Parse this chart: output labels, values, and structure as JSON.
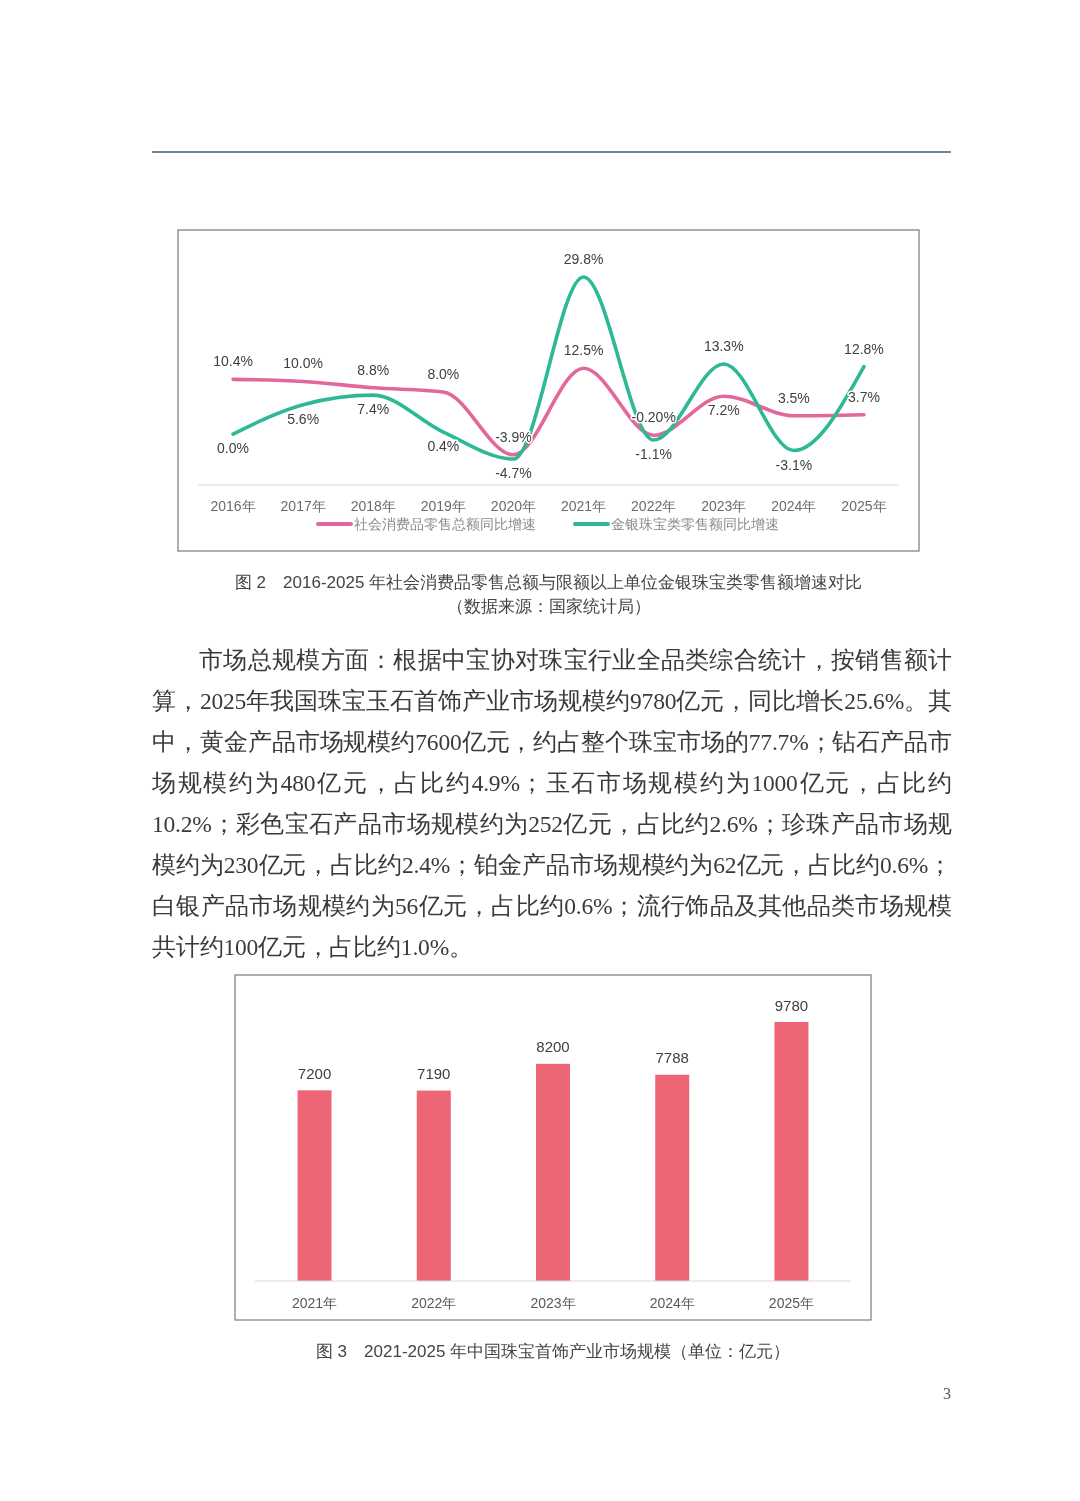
{
  "chart_data": [
    {
      "type": "line",
      "title": "图 2　2016-2025 年社会消费品零售总额与限额以上单位金银珠宝类零售额增速对比",
      "annotations": [
        "（数据来源：国家统计局）"
      ],
      "categories": [
        "2016年",
        "2017年",
        "2018年",
        "2019年",
        "2020年",
        "2021年",
        "2022年",
        "2023年",
        "2024年",
        "2025年"
      ],
      "series": [
        {
          "name": "社会消费品零售总额同比增速",
          "color": "#e2679a",
          "values": [
            10.4,
            10.0,
            8.8,
            8.0,
            -3.9,
            12.5,
            -0.2,
            7.2,
            3.5,
            3.7
          ],
          "value_labels": [
            "10.4%",
            "10.0%",
            "8.8%",
            "8.0%",
            "-3.9%",
            "12.5%",
            "-0.20%",
            "7.2%",
            "3.5%",
            "3.7%"
          ]
        },
        {
          "name": "金银珠宝类零售额同比增速",
          "color": "#2db996",
          "values": [
            0.0,
            5.6,
            7.4,
            0.4,
            -4.7,
            29.8,
            -1.1,
            13.3,
            -3.1,
            12.8
          ],
          "value_labels": [
            "0.0%",
            "5.6%",
            "7.4%",
            "0.4%",
            "-4.7%",
            "29.8%",
            "-1.1%",
            "13.3%",
            "-3.1%",
            "12.8%"
          ]
        }
      ],
      "legend": "bottom",
      "tick_labels": "x"
    },
    {
      "type": "other",
      "annotations": [
        "市场总规模方面：根据中宝协对珠宝行业全品类综合统计，按销售额计算，2025年我国珠宝玉石首饰产业市场规模约9780亿元，同比增长25.6%。其中，黄金产品市场规模约7600亿元，约占整个珠宝市场的77.7%；钻石产品市场规模约为480亿元，占比约4.9%；玉石市场规模约为1000亿元，占比约10.2%；彩色宝石产品市场规模约为252亿元，占比约2.6%；珍珠产品市场规模约为230亿元，占比约2.4%；铂金产品市场规模约为62亿元，占比约0.6%；白银产品市场规模约为56亿元，占比约0.6%；流行饰品及其他品类市场规模共计约100亿元，占比约1.0%。"
      ]
    },
    {
      "type": "bar",
      "title": "图 3　2021-2025 年中国珠宝首饰产业市场规模（单位：亿元）",
      "annotations": [
        "3"
      ],
      "categories": [
        "2021年",
        "2022年",
        "2023年",
        "2024年",
        "2025年"
      ],
      "values": [
        7200,
        7190,
        8200,
        7788,
        9780
      ],
      "color": "#ec6676",
      "data_labels": true,
      "tick_labels": "x"
    }
  ]
}
